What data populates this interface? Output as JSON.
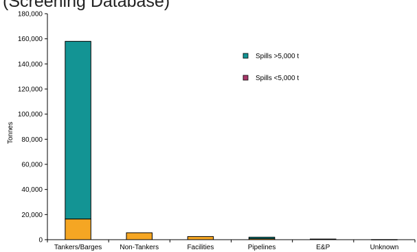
{
  "chart_data": {
    "type": "bar",
    "stacked": true,
    "title": "(Screening Database)",
    "ylabel": "Tonnes",
    "xlabel": "",
    "ylim": [
      0,
      180000
    ],
    "yticks": [
      0,
      20000,
      40000,
      60000,
      80000,
      100000,
      120000,
      140000,
      160000,
      180000
    ],
    "ytick_labels": [
      "0",
      "20,000",
      "40,000",
      "60,000",
      "80,000",
      "100,000",
      "120,000",
      "140,000",
      "160,000",
      "180,000"
    ],
    "grid": false,
    "legend_position": "top-right",
    "categories": [
      "Tankers/Barges",
      "Non-Tankers",
      "Facilities",
      "Pipelines",
      "E&P",
      "Unknown"
    ],
    "series": [
      {
        "name": "Spills <5,000 t",
        "values": [
          16500,
          5500,
          2500,
          800,
          500,
          100
        ],
        "color": "#F5A623",
        "legend_color": "#A8386A"
      },
      {
        "name": "Spills >5,000 t",
        "values": [
          141500,
          0,
          0,
          1200,
          0,
          0
        ],
        "color": "#139494",
        "legend_color": "#139494"
      }
    ],
    "legend_order": [
      1,
      0
    ]
  }
}
